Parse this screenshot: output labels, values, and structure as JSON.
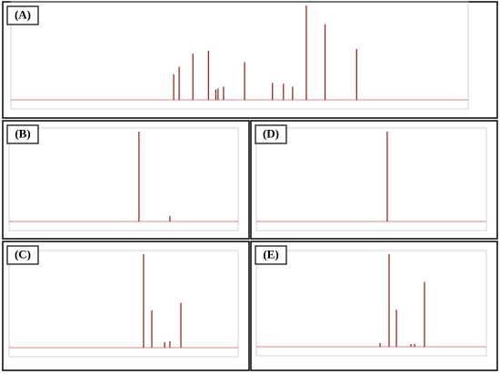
{
  "chart_data": [
    {
      "type": "spectrum",
      "label": "(A)",
      "color": "#8b1a1a",
      "xlim": [
        0,
        100
      ],
      "ylim": [
        0,
        100
      ],
      "x": [
        35.6,
        36.8,
        39.8,
        43.2,
        44.8,
        45.3,
        46.5,
        51.1,
        57.2,
        59.6,
        61.6,
        64.6,
        68.7,
        75.6
      ],
      "values": [
        27,
        35,
        49,
        52,
        11,
        12,
        14,
        40,
        18,
        17,
        14,
        100,
        80,
        54
      ]
    },
    {
      "type": "spectrum",
      "label": "(B)",
      "color": "#8b1a1a",
      "xlim": [
        0,
        100
      ],
      "ylim": [
        0,
        100
      ],
      "x": [
        56.7,
        70.2
      ],
      "values": [
        100,
        6
      ]
    },
    {
      "type": "spectrum",
      "label": "(D)",
      "color": "#8b1a1a",
      "xlim": [
        0,
        100
      ],
      "ylim": [
        0,
        100
      ],
      "x": [
        56.9
      ],
      "values": [
        100
      ]
    },
    {
      "type": "spectrum",
      "label": "(C)",
      "color": "#8b1a1a",
      "xlim": [
        0,
        100
      ],
      "ylim": [
        0,
        100
      ],
      "x": [
        58.7,
        62.3,
        67.9,
        70.2,
        75.0
      ],
      "values": [
        100,
        40,
        6,
        7,
        48
      ]
    },
    {
      "type": "spectrum",
      "label": "(E)",
      "color": "#8b1a1a",
      "xlim": [
        0,
        100
      ],
      "ylim": [
        0,
        100
      ],
      "x": [
        53.8,
        57.7,
        60.9,
        67.2,
        68.8,
        73.1
      ],
      "values": [
        4,
        100,
        40,
        3,
        3,
        70
      ]
    }
  ]
}
